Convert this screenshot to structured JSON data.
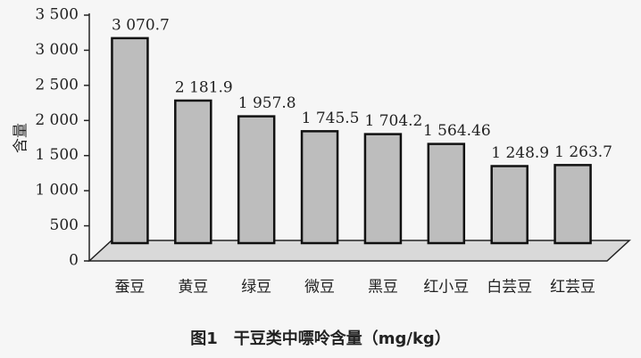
{
  "chart_data": {
    "type": "bar",
    "title": "图1　干豆类中嘌呤含量（mg/kg）",
    "y_label": "含量",
    "categories": [
      "蚕豆",
      "黄豆",
      "绿豆",
      "微豆",
      "黑豆",
      "红小豆",
      "白芸豆",
      "红芸豆"
    ],
    "values": [
      3070.7,
      2181.9,
      1957.8,
      1745.5,
      1704.2,
      1564.46,
      1248.9,
      1263.7
    ],
    "value_labels": [
      "3 070.7",
      "2 181.9",
      "1 957.8",
      "1 745.5",
      "1 704.2",
      "1 564.46",
      "1 248.9",
      "1 263.7"
    ],
    "color": "#bdbdbd",
    "ylim": [
      0,
      3500
    ],
    "yticks": [
      0,
      500,
      {
        "value": 1000,
        "label": "1 000"
      },
      {
        "value": 1500,
        "label": "1 500"
      },
      {
        "value": 2000,
        "label": "2 000"
      },
      {
        "value": 2500,
        "label": "2 500"
      },
      {
        "value": 3000,
        "label": "3 000"
      },
      {
        "value": 3500,
        "label": "3 500"
      }
    ]
  }
}
